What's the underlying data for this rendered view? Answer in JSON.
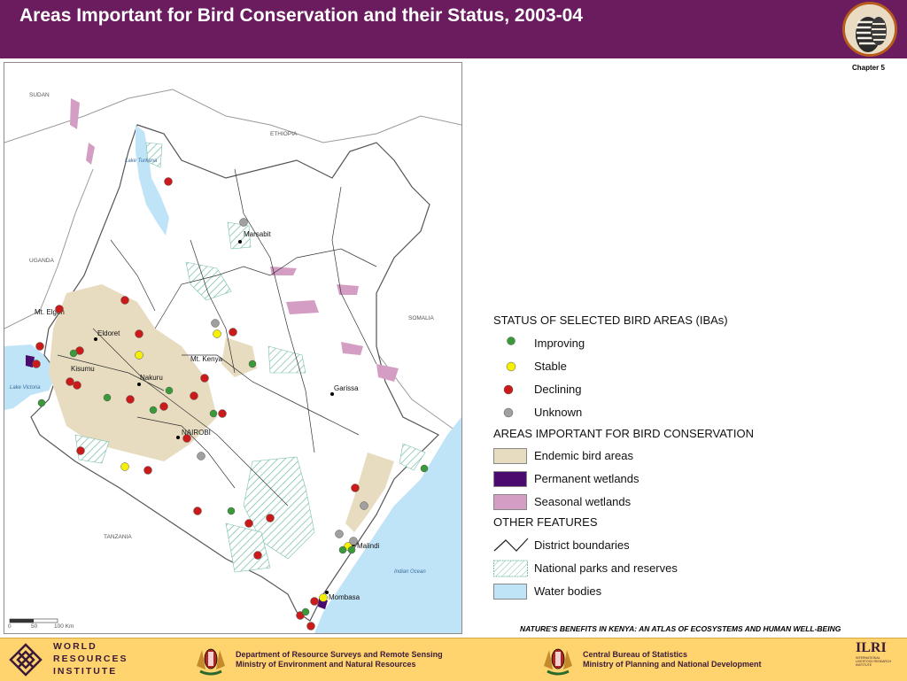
{
  "header": {
    "title": "Areas Important for Bird Conservation and their Status, 2003-04",
    "chapter": "Chapter 5"
  },
  "map": {
    "countries": [
      "SUDAN",
      "ETHIOPIA",
      "UGANDA",
      "SOMALIA",
      "TANZANIA"
    ],
    "towns": [
      "Marsabit",
      "Eldoret",
      "Kisumu",
      "Nakuru",
      "Mt. Kenya",
      "NAIROBI",
      "Garissa",
      "Malindi",
      "Mombasa",
      "Mt. Elgon"
    ],
    "water_labels": [
      "Lake Turkana",
      "Lake Victoria",
      "Indian Ocean"
    ],
    "scalebar": [
      "0",
      "50",
      "100 Km"
    ],
    "colors": {
      "endemic": "#e8dcc0",
      "permanent_wetland": "#4b0a6e",
      "seasonal_wetland": "#d49ec4",
      "water": "#bfe3f7",
      "parks": "#7bbfae",
      "improving": "#3a9a3a",
      "stable": "#f5f000",
      "declining": "#cc1a1a",
      "unknown": "#a0a0a0"
    }
  },
  "legend": {
    "status_heading": "STATUS OF SELECTED BIRD AREAS (IBAs)",
    "status_items": [
      {
        "label": "Improving",
        "symbol": "green-dot"
      },
      {
        "label": "Stable",
        "symbol": "yellow-dot"
      },
      {
        "label": "Declining",
        "symbol": "red-dot"
      },
      {
        "label": "Unknown",
        "symbol": "grey-dot"
      }
    ],
    "areas_heading": "AREAS IMPORTANT FOR BIRD CONSERVATION",
    "area_items": [
      {
        "label": "Endemic bird areas",
        "color": "#e8dcc0"
      },
      {
        "label": "Permanent wetlands",
        "color": "#4b0a6e"
      },
      {
        "label": "Seasonal wetlands",
        "color": "#d49ec4"
      }
    ],
    "other_heading": "OTHER FEATURES",
    "other_items": [
      {
        "label": "District boundaries"
      },
      {
        "label": "National parks and reserves"
      },
      {
        "label": "Water bodies"
      }
    ]
  },
  "footer": {
    "atlas_title": "NATURE'S BENEFITS IN KENYA: AN ATLAS OF ECOSYSTEMS AND HUMAN WELL-BEING",
    "wri": [
      "WORLD",
      "RESOURCES",
      "INSTITUTE"
    ],
    "dept": [
      "Department of Resource Surveys and Remote Sensing",
      "Ministry of Environment and Natural Resources"
    ],
    "cbs": [
      "Central Bureau of Statistics",
      "Ministry of Planning and National Development"
    ],
    "ilri": "ILRI",
    "ilri_sub": [
      "INTERNATIONAL",
      "LIVESTOCK RESEARCH",
      "INSTITUTE"
    ]
  }
}
